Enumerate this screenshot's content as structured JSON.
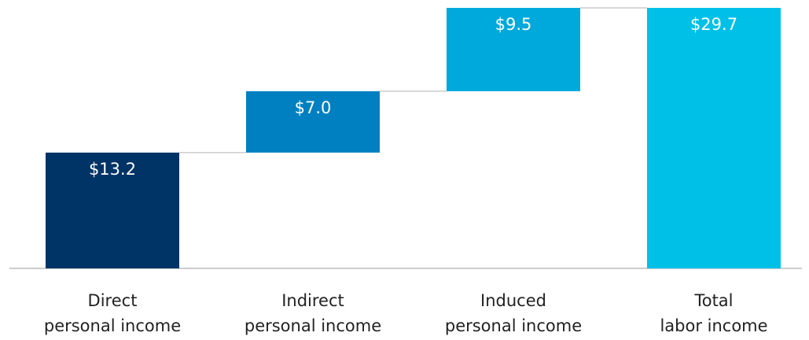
{
  "chart_data": {
    "type": "waterfall",
    "categories": [
      [
        "Direct",
        "personal income"
      ],
      [
        "Indirect",
        "personal income"
      ],
      [
        "Induced",
        "personal income"
      ],
      [
        "Total",
        "labor income"
      ]
    ],
    "values": [
      13.2,
      7.0,
      9.5,
      29.7
    ],
    "value_labels": [
      "$13.2",
      "$7.0",
      "$9.5",
      "$29.7"
    ],
    "colors": [
      "#003366",
      "#0080c0",
      "#00a9dc",
      "#00c0e8"
    ]
  }
}
